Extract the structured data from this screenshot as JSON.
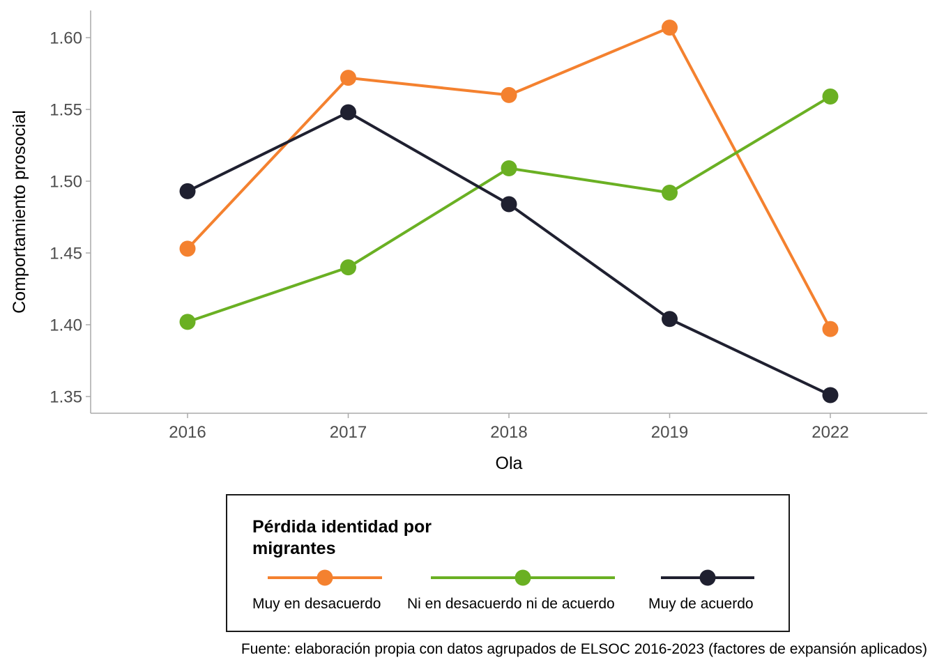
{
  "chart_data": {
    "type": "line",
    "x": [
      "2016",
      "2017",
      "2018",
      "2019",
      "2022"
    ],
    "xlabel": "Ola",
    "ylabel": "Comportamiento prosocial",
    "ylim": [
      1.33,
      1.62
    ],
    "yticks": [
      "1.35",
      "1.40",
      "1.45",
      "1.50",
      "1.55",
      "1.60"
    ],
    "grid": false,
    "legend_title": "Pérdida identidad por migrantes",
    "legend_position": "bottom",
    "series": [
      {
        "name": "Muy en desacuerdo",
        "color": "#f4812f",
        "values": [
          1.453,
          1.572,
          1.56,
          1.607,
          1.397
        ]
      },
      {
        "name": "Ni en desacuerdo ni de acuerdo",
        "color": "#6ab023",
        "values": [
          1.402,
          1.44,
          1.509,
          1.492,
          1.559
        ]
      },
      {
        "name": "Muy de acuerdo",
        "color": "#1f2030",
        "values": [
          1.493,
          1.548,
          1.484,
          1.404,
          1.351
        ]
      }
    ],
    "caption": "Fuente: elaboración propia con datos agrupados de ELSOC 2016-2023 (factores de expansión aplicados)"
  }
}
